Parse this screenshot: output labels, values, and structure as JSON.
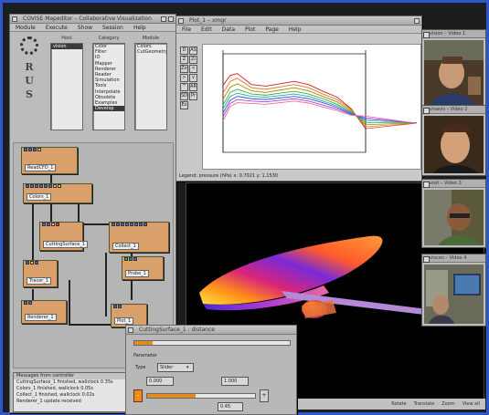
{
  "colors": {
    "desktop_border": "#2e55c9",
    "module_fill": "#d9a06b",
    "slider_accent": "#ef8a12",
    "render_bg": "#000000"
  },
  "covise": {
    "title": "COVISE Mapeditor – Collaborative Visualization",
    "menu": [
      "Module",
      "Execute",
      "Show",
      "Session",
      "Help"
    ],
    "logo_letters": [
      "R",
      "U",
      "S"
    ],
    "columns": [
      {
        "header": "Host",
        "items": [
          "vision"
        ]
      },
      {
        "header": "Category",
        "items": [
          "Color",
          "Filter",
          "IO",
          "Mapper",
          "Renderer",
          "Reader",
          "Simulation",
          "Tools",
          "Interpolate",
          "Obsolete",
          "Examples",
          "Develop"
        ]
      },
      {
        "header": "Module",
        "items": [
          "Colors",
          "CutGeometry"
        ]
      }
    ],
    "modules": [
      "ReadCFD_1",
      "Colors_1",
      "CuttingSurface_1",
      "Collect_1",
      "Tracer_1",
      "Probe_1",
      "Renderer_1",
      "Plot_1"
    ],
    "messages_header": "Messages from controller",
    "messages": [
      "CuttingSurface_1 finished, wallclock 0.35s",
      "Colors_1 finished, wallclock 0.05s",
      "Collect_1 finished, wallclock 0.02s",
      "Renderer_1 update received"
    ]
  },
  "plot": {
    "title": "Plot_1 – xmgr",
    "menu": [
      "File",
      "Edit",
      "Data",
      "Plot",
      "Page",
      "Help"
    ],
    "toolbar": [
      "D",
      "AS",
      "Z",
      "Zi",
      "Zo",
      "<",
      ">",
      "v",
      "^",
      "AR",
      "SD",
      "Pr",
      "Ex"
    ],
    "status": "Legend: pressure (hPa)   x: 0.7021   y: 1.1530"
  },
  "chart_data": {
    "type": "line",
    "title": "",
    "xlabel": "",
    "ylabel": "",
    "x": [
      0.0,
      0.05,
      0.1,
      0.2,
      0.3,
      0.4,
      0.5,
      0.6,
      0.7,
      0.8,
      0.9,
      1.0
    ],
    "xlim": [
      0.0,
      1.0
    ],
    "ylim": [
      -1.0,
      1.5
    ],
    "grid": false,
    "series": [
      {
        "color": "#cc2222",
        "values": [
          0.7,
          0.95,
          1.0,
          0.72,
          0.68,
          0.74,
          0.8,
          0.72,
          0.55,
          0.4,
          0.1,
          -0.4
        ]
      },
      {
        "color": "#dd7722",
        "values": [
          0.5,
          0.8,
          0.88,
          0.64,
          0.6,
          0.66,
          0.72,
          0.64,
          0.48,
          0.34,
          0.08,
          -0.35
        ]
      },
      {
        "color": "#aa8800",
        "values": [
          0.35,
          0.65,
          0.74,
          0.56,
          0.52,
          0.58,
          0.64,
          0.56,
          0.42,
          0.28,
          0.05,
          -0.3
        ]
      },
      {
        "color": "#44aa44",
        "values": [
          0.2,
          0.52,
          0.6,
          0.48,
          0.45,
          0.5,
          0.55,
          0.48,
          0.36,
          0.22,
          0.02,
          -0.25
        ]
      },
      {
        "color": "#22aaaa",
        "values": [
          0.1,
          0.42,
          0.5,
          0.42,
          0.4,
          0.44,
          0.48,
          0.42,
          0.3,
          0.18,
          0.0,
          -0.2
        ]
      },
      {
        "color": "#3355dd",
        "values": [
          0.0,
          0.32,
          0.42,
          0.36,
          0.34,
          0.38,
          0.42,
          0.36,
          0.26,
          0.14,
          -0.02,
          -0.16
        ]
      },
      {
        "color": "#aa44cc",
        "values": [
          -0.1,
          0.24,
          0.34,
          0.3,
          0.28,
          0.32,
          0.36,
          0.3,
          0.2,
          0.1,
          -0.04,
          -0.12
        ]
      },
      {
        "color": "#ee66aa",
        "values": [
          -0.2,
          0.16,
          0.26,
          0.24,
          0.22,
          0.26,
          0.3,
          0.25,
          0.15,
          0.06,
          -0.06,
          -0.08
        ]
      }
    ]
  },
  "render": {
    "status_items": [
      "Rotate",
      "Translate",
      "Zoom",
      "View all"
    ]
  },
  "videos": [
    {
      "title": "vision – Video 1"
    },
    {
      "title": "visavis – Video 2"
    },
    {
      "title": "visit – Video 3"
    },
    {
      "title": "viscon – Video 4"
    }
  ],
  "slider": {
    "title": "CuttingSurface_1 : distance",
    "section": "Parameter",
    "label": "Type",
    "type_value": "Slider",
    "min_value": "0.000",
    "max_value": "1.000",
    "current_value": "0.45",
    "minus": "-",
    "plus": "+",
    "position_fraction": 0.45
  }
}
